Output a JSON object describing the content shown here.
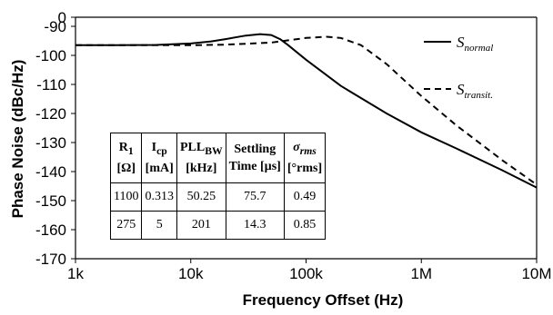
{
  "chart_data": {
    "type": "line",
    "xscale": "log",
    "xlim": [
      1000,
      10000000
    ],
    "ylim": [
      -170,
      0
    ],
    "xlabel": "Frequency Offset (Hz)",
    "ylabel": "Phase Noise (dBc/Hz)",
    "xticks": [
      {
        "value": 1000,
        "label": "1k"
      },
      {
        "value": 10000,
        "label": "10k"
      },
      {
        "value": 100000,
        "label": "100k"
      },
      {
        "value": 1000000,
        "label": "1M"
      },
      {
        "value": 10000000,
        "label": "10M"
      }
    ],
    "yticks": [
      0,
      -90,
      -100,
      -110,
      -120,
      -130,
      -140,
      -150,
      -160,
      -170
    ],
    "grid": false,
    "legend_position": "right",
    "series": [
      {
        "name": "S",
        "subscript": "normal",
        "style": "solid",
        "color": "#000000",
        "x": [
          1000,
          2000,
          5000,
          10000,
          15000,
          20000,
          30000,
          40000,
          50000,
          60000,
          70000,
          100000,
          200000,
          500000,
          1000000,
          2000000,
          5000000,
          10000000
        ],
        "y": [
          -96.5,
          -96.5,
          -96.4,
          -95.9,
          -95.2,
          -94.4,
          -93.2,
          -92.7,
          -93,
          -94.5,
          -96.5,
          -101.5,
          -110.5,
          -120,
          -126.5,
          -132,
          -139.5,
          -145.5
        ]
      },
      {
        "name": "S",
        "subscript": "transit.",
        "style": "dashed",
        "color": "#000000",
        "x": [
          1000,
          5000,
          10000,
          20000,
          50000,
          70000,
          100000,
          150000,
          200000,
          300000,
          500000,
          1000000,
          2000000,
          5000000,
          10000000
        ],
        "y": [
          -96.5,
          -96.5,
          -96.5,
          -96.3,
          -95.6,
          -94.8,
          -94,
          -93.6,
          -94,
          -96.5,
          -103,
          -114,
          -124,
          -136,
          -144.5
        ]
      }
    ],
    "axis_break": {
      "between": [
        0,
        -90
      ]
    }
  },
  "table": {
    "headers": [
      {
        "main": "R",
        "sub": "1",
        "unit": "[Ω]",
        "style": "normal"
      },
      {
        "main": "I",
        "sub": "cp",
        "unit": "[mA]",
        "style": "normal"
      },
      {
        "main": "PLL",
        "sub": "BW",
        "unit": "[kHz]",
        "style": "normal"
      },
      {
        "main": "Settling",
        "sub": "",
        "unit": "Time [µs]",
        "style": "normal"
      },
      {
        "main": "σ",
        "sub": "rms",
        "unit": "[°rms]",
        "style": "italic"
      }
    ],
    "rows": [
      [
        "1100",
        "0.313",
        "50.25",
        "75.7",
        "0.49"
      ],
      [
        "275",
        "5",
        "201",
        "14.3",
        "0.85"
      ]
    ]
  }
}
